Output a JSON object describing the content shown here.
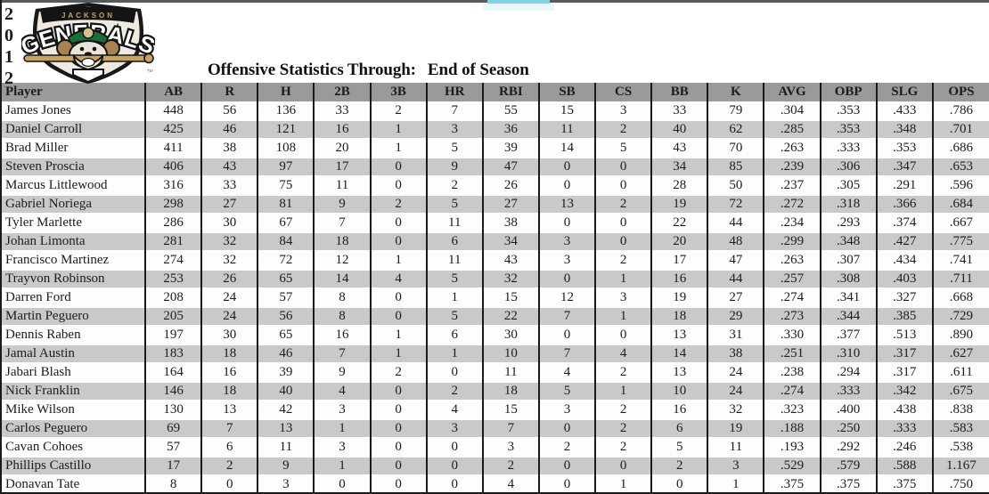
{
  "year": {
    "digits": [
      "2",
      "0",
      "1",
      "2"
    ]
  },
  "logo": {
    "team_top": "JACKSON",
    "team_main": "GENERALS",
    "trademark": "TM"
  },
  "title": {
    "label": "Offensive Statistics Through:",
    "value": "End of Season"
  },
  "table": {
    "columns": [
      "Player",
      "AB",
      "R",
      "H",
      "2B",
      "3B",
      "HR",
      "RBI",
      "SB",
      "CS",
      "BB",
      "K",
      "AVG",
      "OBP",
      "SLG",
      "OPS"
    ],
    "rows": [
      [
        "James Jones",
        "448",
        "56",
        "136",
        "33",
        "2",
        "7",
        "55",
        "15",
        "3",
        "33",
        "79",
        ".304",
        ".353",
        ".433",
        ".786"
      ],
      [
        "Daniel Carroll",
        "425",
        "46",
        "121",
        "16",
        "1",
        "3",
        "36",
        "11",
        "2",
        "40",
        "62",
        ".285",
        ".353",
        ".348",
        ".701"
      ],
      [
        "Brad Miller",
        "411",
        "38",
        "108",
        "20",
        "1",
        "5",
        "39",
        "14",
        "5",
        "43",
        "70",
        ".263",
        ".333",
        ".353",
        ".686"
      ],
      [
        "Steven Proscia",
        "406",
        "43",
        "97",
        "17",
        "0",
        "9",
        "47",
        "0",
        "0",
        "34",
        "85",
        ".239",
        ".306",
        ".347",
        ".653"
      ],
      [
        "Marcus Littlewood",
        "316",
        "33",
        "75",
        "11",
        "0",
        "2",
        "26",
        "0",
        "0",
        "28",
        "50",
        ".237",
        ".305",
        ".291",
        ".596"
      ],
      [
        "Gabriel Noriega",
        "298",
        "27",
        "81",
        "9",
        "2",
        "5",
        "27",
        "13",
        "2",
        "19",
        "72",
        ".272",
        ".318",
        ".366",
        ".684"
      ],
      [
        "Tyler Marlette",
        "286",
        "30",
        "67",
        "7",
        "0",
        "11",
        "38",
        "0",
        "0",
        "22",
        "44",
        ".234",
        ".293",
        ".374",
        ".667"
      ],
      [
        "Johan Limonta",
        "281",
        "32",
        "84",
        "18",
        "0",
        "6",
        "34",
        "3",
        "0",
        "20",
        "48",
        ".299",
        ".348",
        ".427",
        ".775"
      ],
      [
        "Francisco Martinez",
        "274",
        "32",
        "72",
        "12",
        "1",
        "11",
        "43",
        "3",
        "2",
        "17",
        "47",
        ".263",
        ".307",
        ".434",
        ".741"
      ],
      [
        "Trayvon Robinson",
        "253",
        "26",
        "65",
        "14",
        "4",
        "5",
        "32",
        "0",
        "1",
        "16",
        "44",
        ".257",
        ".308",
        ".403",
        ".711"
      ],
      [
        "Darren Ford",
        "208",
        "24",
        "57",
        "8",
        "0",
        "1",
        "15",
        "12",
        "3",
        "19",
        "27",
        ".274",
        ".341",
        ".327",
        ".668"
      ],
      [
        "Martin Peguero",
        "205",
        "24",
        "56",
        "8",
        "0",
        "5",
        "22",
        "7",
        "1",
        "18",
        "29",
        ".273",
        ".344",
        ".385",
        ".729"
      ],
      [
        "Dennis Raben",
        "197",
        "30",
        "65",
        "16",
        "1",
        "6",
        "30",
        "0",
        "0",
        "13",
        "31",
        ".330",
        ".377",
        ".513",
        ".890"
      ],
      [
        "Jamal Austin",
        "183",
        "18",
        "46",
        "7",
        "1",
        "1",
        "10",
        "7",
        "4",
        "14",
        "38",
        ".251",
        ".310",
        ".317",
        ".627"
      ],
      [
        "Jabari Blash",
        "164",
        "16",
        "39",
        "9",
        "2",
        "0",
        "11",
        "4",
        "2",
        "13",
        "24",
        ".238",
        ".294",
        ".317",
        ".611"
      ],
      [
        "Nick Franklin",
        "146",
        "18",
        "40",
        "4",
        "0",
        "2",
        "18",
        "5",
        "1",
        "10",
        "24",
        ".274",
        ".333",
        ".342",
        ".675"
      ],
      [
        "Mike Wilson",
        "130",
        "13",
        "42",
        "3",
        "0",
        "4",
        "15",
        "3",
        "2",
        "16",
        "32",
        ".323",
        ".400",
        ".438",
        ".838"
      ],
      [
        "Carlos Peguero",
        "69",
        "7",
        "13",
        "1",
        "0",
        "3",
        "7",
        "0",
        "2",
        "6",
        "19",
        ".188",
        ".250",
        ".333",
        ".583"
      ],
      [
        "Cavan Cohoes",
        "57",
        "6",
        "11",
        "3",
        "0",
        "0",
        "3",
        "2",
        "2",
        "5",
        "11",
        ".193",
        ".292",
        ".246",
        ".538"
      ],
      [
        "Phillips Castillo",
        "17",
        "2",
        "9",
        "1",
        "0",
        "0",
        "2",
        "0",
        "0",
        "2",
        "3",
        ".529",
        ".579",
        ".588",
        "1.167"
      ],
      [
        "Donavan Tate",
        "8",
        "0",
        "3",
        "0",
        "0",
        "0",
        "4",
        "0",
        "1",
        "0",
        "1",
        ".375",
        ".375",
        ".375",
        ".750"
      ]
    ]
  },
  "colors": {
    "header_bg": "#9a9a9a",
    "stripe_bg": "#c8c9ca",
    "border": "#1a1a1a",
    "top_bar": "#58595b",
    "accent_cyan": "#84d2e2",
    "logo_green": "#1c6b3c",
    "logo_tan": "#c9a262"
  }
}
